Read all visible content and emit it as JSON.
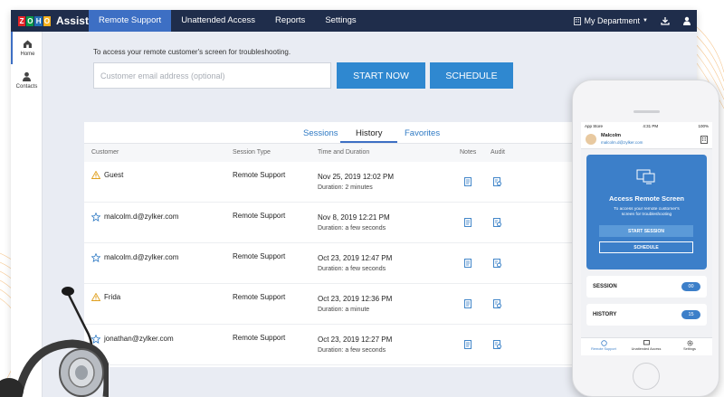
{
  "brand": {
    "logo_letters": [
      "Z",
      "O",
      "H",
      "O"
    ],
    "logo_colors": [
      "#e42527",
      "#089949",
      "#226db4",
      "#f9b21d"
    ],
    "product": "Assist"
  },
  "topnav": {
    "tabs": [
      {
        "label": "Remote Support",
        "active": true
      },
      {
        "label": "Unattended Access",
        "active": false
      },
      {
        "label": "Reports",
        "active": false
      },
      {
        "label": "Settings",
        "active": false
      }
    ],
    "department": "My Department"
  },
  "sidebar": {
    "items": [
      {
        "label": "Home",
        "icon": "home-icon",
        "active": true
      },
      {
        "label": "Contacts",
        "icon": "contact-icon",
        "active": false
      }
    ]
  },
  "start": {
    "description": "To access your remote customer's screen for troubleshooting.",
    "email_placeholder": "Customer email address (optional)",
    "email_value": "",
    "start_label": "START NOW",
    "schedule_label": "SCHEDULE"
  },
  "sessions": {
    "tabs": [
      {
        "label": "Sessions",
        "active": false
      },
      {
        "label": "History",
        "active": true
      },
      {
        "label": "Favorites",
        "active": false
      }
    ],
    "columns": [
      "Customer",
      "Session Type",
      "Time and Duration",
      "Notes",
      "Audit"
    ],
    "rows": [
      {
        "customer": "Guest",
        "icon": "warning-icon",
        "type": "Remote Support",
        "time": "Nov 25, 2019 12:02 PM",
        "duration": "Duration: 2 minutes"
      },
      {
        "customer": "malcolm.d@zylker.com",
        "icon": "star-icon",
        "type": "Remote Support",
        "time": "Nov 8, 2019 12:21 PM",
        "duration": "Duration: a few seconds"
      },
      {
        "customer": "malcolm.d@zylker.com",
        "icon": "star-icon",
        "type": "Remote Support",
        "time": "Oct 23, 2019 12:47 PM",
        "duration": "Duration: a few seconds"
      },
      {
        "customer": "Frida",
        "icon": "warning-icon",
        "type": "Remote Support",
        "time": "Oct 23, 2019 12:36 PM",
        "duration": "Duration: a minute"
      },
      {
        "customer": "jonathan@zylker.com",
        "icon": "star-icon",
        "type": "Remote Support",
        "time": "Oct 23, 2019 12:27 PM",
        "duration": "Duration: a few seconds"
      }
    ]
  },
  "phone": {
    "status_left": "App Store",
    "status_time": "4:31 PM",
    "status_right": "100%",
    "user_name": "Malcolm",
    "user_email": "malcolm.d@zylker.com",
    "card_title": "Access Remote Screen",
    "card_desc_line1": "To access your remote customer's",
    "card_desc_line2": "screen for troubleshooting",
    "start_label": "START SESSION",
    "schedule_label": "SCHEDULE",
    "stats": [
      {
        "label": "SESSION",
        "count": "00"
      },
      {
        "label": "HISTORY",
        "count": "15"
      }
    ],
    "tabbar": [
      {
        "label": "Remote Support",
        "active": true
      },
      {
        "label": "Unattended Access",
        "active": false
      },
      {
        "label": "Settings",
        "active": false
      }
    ]
  }
}
